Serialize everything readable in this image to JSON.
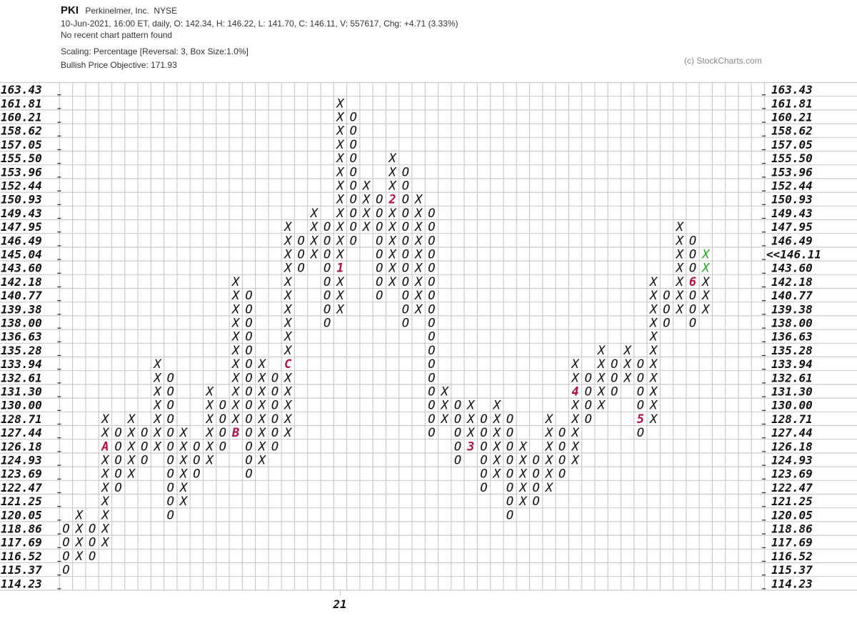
{
  "header": {
    "symbol": "PKI",
    "company": "Perkinelmer, Inc.",
    "exchange": "NYSE",
    "quote_line": "10-Jun-2021, 16:00 ET, daily, O: 142.34, H: 146.22, L: 141.70, C: 146.11, V: 557617, Chg: +4.71 (3.33%)",
    "pattern": "No recent chart pattern found",
    "scaling": "Scaling: Percentage [Reversal: 3, Box Size:1.0%]",
    "objective": "Bullish Price Objective: 171.93",
    "copyright": "(c) StockCharts.com"
  },
  "colors": {
    "marker": "#b01040",
    "current": "#22aa22",
    "grid": "#cccccc",
    "mark": "#111111"
  },
  "chart_data": {
    "type": "point-and-figure",
    "price_levels": [
      "163.43",
      "161.81",
      "160.21",
      "158.62",
      "157.05",
      "155.50",
      "153.96",
      "152.44",
      "150.93",
      "149.43",
      "147.95",
      "146.49",
      "145.04",
      "143.60",
      "142.18",
      "140.77",
      "139.38",
      "138.00",
      "136.63",
      "135.28",
      "133.94",
      "132.61",
      "131.30",
      "130.00",
      "128.71",
      "127.44",
      "126.18",
      "124.93",
      "123.69",
      "122.47",
      "121.25",
      "120.05",
      "118.86",
      "117.69",
      "116.52",
      "115.37",
      "114.23"
    ],
    "highlight_left_level": "145.04",
    "current_price_label": "<<146.11",
    "current_price_level": "145.04",
    "x_labels": [
      {
        "column": 21,
        "text": "21"
      }
    ],
    "columns": [
      {
        "t": "O",
        "top": "118.86",
        "bot": "115.37"
      },
      {
        "t": "X",
        "top": "120.05",
        "bot": "116.52"
      },
      {
        "t": "O",
        "top": "118.86",
        "bot": "116.52"
      },
      {
        "t": "X",
        "top": "128.71",
        "bot": "117.69",
        "markers": {
          "126.18": "A"
        }
      },
      {
        "t": "O",
        "top": "127.44",
        "bot": "122.47"
      },
      {
        "t": "X",
        "top": "128.71",
        "bot": "123.69"
      },
      {
        "t": "O",
        "top": "127.44",
        "bot": "124.93"
      },
      {
        "t": "X",
        "top": "133.94",
        "bot": "126.18"
      },
      {
        "t": "O",
        "top": "132.61",
        "bot": "120.05"
      },
      {
        "t": "X",
        "top": "127.44",
        "bot": "121.25"
      },
      {
        "t": "O",
        "top": "126.18",
        "bot": "123.69"
      },
      {
        "t": "X",
        "top": "131.30",
        "bot": "124.93"
      },
      {
        "t": "O",
        "top": "130.00",
        "bot": "126.18"
      },
      {
        "t": "X",
        "top": "142.18",
        "bot": "127.44",
        "markers": {
          "127.44": "B"
        }
      },
      {
        "t": "O",
        "top": "140.77",
        "bot": "123.69"
      },
      {
        "t": "X",
        "top": "133.94",
        "bot": "124.93"
      },
      {
        "t": "O",
        "top": "132.61",
        "bot": "126.18"
      },
      {
        "t": "X",
        "top": "147.95",
        "bot": "127.44",
        "markers": {
          "133.94": "C"
        }
      },
      {
        "t": "O",
        "top": "146.49",
        "bot": "143.60"
      },
      {
        "t": "X",
        "top": "149.43",
        "bot": "145.04"
      },
      {
        "t": "O",
        "top": "147.95",
        "bot": "138.00"
      },
      {
        "t": "X",
        "top": "161.81",
        "bot": "139.38",
        "markers": {
          "143.60": "1"
        }
      },
      {
        "t": "O",
        "top": "160.21",
        "bot": "146.49"
      },
      {
        "t": "X",
        "top": "152.44",
        "bot": "147.95"
      },
      {
        "t": "O",
        "top": "150.93",
        "bot": "140.77"
      },
      {
        "t": "X",
        "top": "155.50",
        "bot": "142.18",
        "markers": {
          "150.93": "2"
        }
      },
      {
        "t": "O",
        "top": "153.96",
        "bot": "138.00"
      },
      {
        "t": "X",
        "top": "150.93",
        "bot": "139.38"
      },
      {
        "t": "O",
        "top": "149.43",
        "bot": "127.44"
      },
      {
        "t": "X",
        "top": "131.30",
        "bot": "128.71"
      },
      {
        "t": "O",
        "top": "130.00",
        "bot": "124.93"
      },
      {
        "t": "X",
        "top": "130.00",
        "bot": "126.18",
        "markers": {
          "126.18": "3"
        }
      },
      {
        "t": "O",
        "top": "128.71",
        "bot": "122.47"
      },
      {
        "t": "X",
        "top": "130.00",
        "bot": "123.69"
      },
      {
        "t": "O",
        "top": "128.71",
        "bot": "120.05"
      },
      {
        "t": "X",
        "top": "126.18",
        "bot": "121.25"
      },
      {
        "t": "O",
        "top": "124.93",
        "bot": "121.25"
      },
      {
        "t": "X",
        "top": "128.71",
        "bot": "122.47"
      },
      {
        "t": "O",
        "top": "127.44",
        "bot": "123.69"
      },
      {
        "t": "X",
        "top": "133.94",
        "bot": "124.93",
        "markers": {
          "131.30": "4"
        }
      },
      {
        "t": "O",
        "top": "132.61",
        "bot": "128.71"
      },
      {
        "t": "X",
        "top": "135.28",
        "bot": "130.00"
      },
      {
        "t": "O",
        "top": "133.94",
        "bot": "131.30"
      },
      {
        "t": "X",
        "top": "135.28",
        "bot": "132.61"
      },
      {
        "t": "O",
        "top": "133.94",
        "bot": "127.44",
        "markers": {
          "128.71": "5"
        }
      },
      {
        "t": "X",
        "top": "142.18",
        "bot": "128.71"
      },
      {
        "t": "O",
        "top": "140.77",
        "bot": "138.00"
      },
      {
        "t": "X",
        "top": "147.95",
        "bot": "139.38"
      },
      {
        "t": "O",
        "top": "146.49",
        "bot": "138.00",
        "markers": {
          "142.18": "6"
        }
      },
      {
        "t": "X",
        "top": "145.04",
        "bot": "139.38",
        "current": [
          "145.04",
          "143.60"
        ]
      }
    ]
  }
}
